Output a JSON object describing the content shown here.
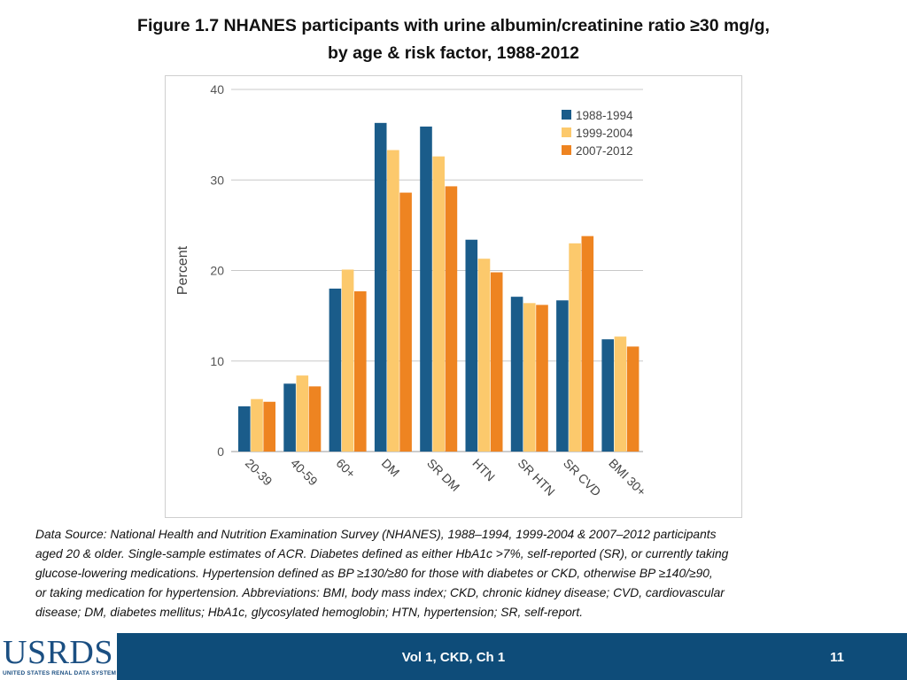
{
  "slide": {
    "title_line1": "Figure 1.7 NHANES participants with urine albumin/creatinine ratio ≥30 mg/g,",
    "title_line2": "by age & risk factor, 1988-2012",
    "source_lines": [
      "Data Source: National Health and Nutrition Examination Survey (NHANES), 1988–1994, 1999-2004 & 2007–2012 participants",
      "aged 20 & older. Single-sample estimates of ACR. Diabetes defined as either HbA1c >7%, self-reported (SR), or currently taking",
      "glucose-lowering medications. Hypertension defined as BP ≥130/≥80 for those with diabetes or CKD, otherwise BP ≥140/≥90,",
      "or taking medication for hypertension. Abbreviations: BMI, body mass index; CKD, chronic kidney disease; CVD, cardiovascular",
      "disease; DM, diabetes mellitus; HbA1c, glycosylated hemoglobin; HTN, hypertension; SR, self-report."
    ]
  },
  "footer": {
    "logo_text": "USRDS",
    "logo_subtext": "UNITED STATES RENAL DATA SYSTEM",
    "center_text": "Vol 1, CKD, Ch 1",
    "page_number": "11",
    "bar_color": "#0e4c79"
  },
  "chart_data": {
    "type": "bar",
    "title": "Figure 1.7 NHANES participants with urine albumin/creatinine ratio ≥30 mg/g, by age & risk factor, 1988-2012",
    "xlabel": "",
    "ylabel": "Percent",
    "ylim": [
      0,
      40
    ],
    "yticks": [
      0,
      10,
      20,
      30,
      40
    ],
    "grid": true,
    "legend_position": "top-right",
    "categories": [
      "20-39",
      "40-59",
      "60+",
      "DM",
      "SR DM",
      "HTN",
      "SR HTN",
      "SR CVD",
      "BMI 30+"
    ],
    "series": [
      {
        "name": "1988-1994",
        "color": "#1a5c8a",
        "values": [
          5.0,
          7.5,
          18.0,
          36.3,
          35.9,
          23.4,
          17.1,
          16.7,
          12.4
        ]
      },
      {
        "name": "1999-2004",
        "color": "#fcc96c",
        "values": [
          5.8,
          8.4,
          20.1,
          33.3,
          32.6,
          21.3,
          16.4,
          23.0,
          12.7
        ]
      },
      {
        "name": "2007-2012",
        "color": "#ee8421",
        "values": [
          5.5,
          7.2,
          17.7,
          28.6,
          29.3,
          19.8,
          16.2,
          23.8,
          11.6
        ]
      }
    ]
  }
}
